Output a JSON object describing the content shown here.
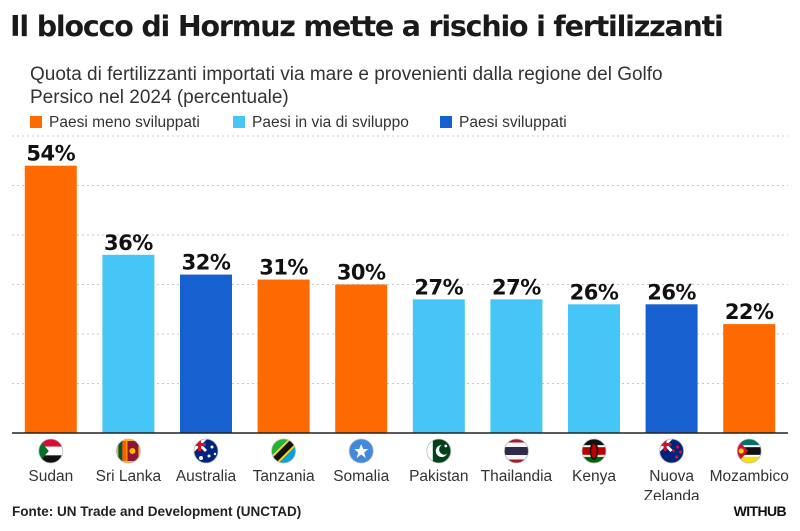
{
  "header": {
    "title": "Il blocco di Hormuz mette a rischio i fertilizzanti",
    "subtitle": "Quota di fertilizzanti importati via mare e provenienti dalla regione del Golfo Persico nel 2024 (percentuale)"
  },
  "legend": [
    {
      "label": "Paesi meno sviluppati",
      "color": "#ff6a00"
    },
    {
      "label": "Paesi in via di sviluppo",
      "color": "#45c6f7"
    },
    {
      "label": "Paesi sviluppati",
      "color": "#1660d0"
    }
  ],
  "chart_data": {
    "type": "bar",
    "title": "Il blocco di Hormuz mette a rischio i fertilizzanti",
    "subtitle": "Quota di fertilizzanti importati via mare e provenienti dalla regione del Golfo Persico nel 2024 (percentuale)",
    "xlabel": "",
    "ylabel": "",
    "ylim": [
      0,
      60
    ],
    "grid": true,
    "legend_position": "top-left",
    "categories": [
      "Sudan",
      "Sri Lanka",
      "Australia",
      "Tanzania",
      "Somalia",
      "Pakistan",
      "Thailandia",
      "Kenya",
      "Nuova Zelanda",
      "Mozambico"
    ],
    "category_lines": [
      [
        "Sudan"
      ],
      [
        "Sri Lanka"
      ],
      [
        "Australia"
      ],
      [
        "Tanzania"
      ],
      [
        "Somalia"
      ],
      [
        "Pakistan"
      ],
      [
        "Thailandia"
      ],
      [
        "Kenya"
      ],
      [
        "Nuova",
        "Zelanda"
      ],
      [
        "Mozambico"
      ]
    ],
    "values": [
      54,
      36,
      32,
      31,
      30,
      27,
      27,
      26,
      26,
      22
    ],
    "value_labels": [
      "54%",
      "36%",
      "32%",
      "31%",
      "30%",
      "27%",
      "27%",
      "26%",
      "26%",
      "22%"
    ],
    "groups": [
      "Paesi meno sviluppati",
      "Paesi in via di sviluppo",
      "Paesi sviluppati",
      "Paesi meno sviluppati",
      "Paesi meno sviluppati",
      "Paesi in via di sviluppo",
      "Paesi in via di sviluppo",
      "Paesi in via di sviluppo",
      "Paesi sviluppati",
      "Paesi meno sviluppati"
    ],
    "flag_icons": [
      "sudan-flag-icon",
      "sri-lanka-flag-icon",
      "australia-flag-icon",
      "tanzania-flag-icon",
      "somalia-flag-icon",
      "pakistan-flag-icon",
      "thailand-flag-icon",
      "kenya-flag-icon",
      "new-zealand-flag-icon",
      "mozambique-flag-icon"
    ]
  },
  "footer": {
    "source": "Fonte: UN Trade and Development (UNCTAD)",
    "brand": "WITHUB"
  }
}
